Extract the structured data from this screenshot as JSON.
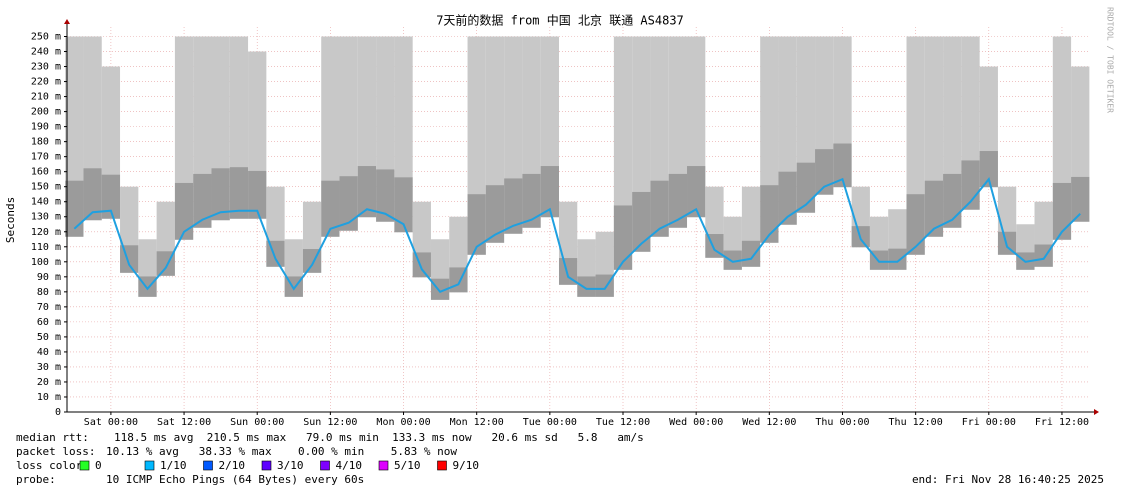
{
  "chart_data": {
    "type": "line",
    "title": "7天前的数据 from 中国 北京 联通 AS4837",
    "y_label": "Seconds",
    "watermark": "RRDTOOL / TOBI OETIKER",
    "grid": true,
    "xlim": [
      -7.2,
      160.6
    ],
    "xticks": [
      {
        "value": 0,
        "label": "Sat 00:00"
      },
      {
        "value": 12,
        "label": "Sat 12:00"
      },
      {
        "value": 24,
        "label": "Sun 00:00"
      },
      {
        "value": 36,
        "label": "Sun 12:00"
      },
      {
        "value": 48,
        "label": "Mon 00:00"
      },
      {
        "value": 60,
        "label": "Mon 12:00"
      },
      {
        "value": 72,
        "label": "Tue 00:00"
      },
      {
        "value": 84,
        "label": "Tue 12:00"
      },
      {
        "value": 96,
        "label": "Wed 00:00"
      },
      {
        "value": 108,
        "label": "Wed 12:00"
      },
      {
        "value": 120,
        "label": "Thu 00:00"
      },
      {
        "value": 132,
        "label": "Thu 12:00"
      },
      {
        "value": 144,
        "label": "Fri 00:00"
      },
      {
        "value": 156,
        "label": "Fri 12:00"
      }
    ],
    "ylim": [
      0,
      253
    ],
    "yticks": [
      0,
      {
        "value": 10,
        "label": "10 m"
      },
      {
        "value": 20,
        "label": "20 m"
      },
      {
        "value": 30,
        "label": "30 m"
      },
      {
        "value": 40,
        "label": "40 m"
      },
      {
        "value": 50,
        "label": "50 m"
      },
      {
        "value": 60,
        "label": "60 m"
      },
      {
        "value": 70,
        "label": "70 m"
      },
      {
        "value": 80,
        "label": "80 m"
      },
      {
        "value": 90,
        "label": "90 m"
      },
      {
        "value": 100,
        "label": "100 m"
      },
      {
        "value": 110,
        "label": "110 m"
      },
      {
        "value": 120,
        "label": "120 m"
      },
      {
        "value": 130,
        "label": "130 m"
      },
      {
        "value": 140,
        "label": "140 m"
      },
      {
        "value": 150,
        "label": "150 m"
      },
      {
        "value": 160,
        "label": "160 m"
      },
      {
        "value": 170,
        "label": "170 m"
      },
      {
        "value": 180,
        "label": "180 m"
      },
      {
        "value": 190,
        "label": "190 m"
      },
      {
        "value": 200,
        "label": "200 m"
      },
      {
        "value": 210,
        "label": "210 m"
      },
      {
        "value": 220,
        "label": "220 m"
      },
      {
        "value": 230,
        "label": "230 m"
      },
      {
        "value": 240,
        "label": "240 m"
      },
      {
        "value": 250,
        "label": "250 m"
      }
    ],
    "x": [
      -6,
      -3,
      0,
      3,
      6,
      9,
      12,
      15,
      18,
      21,
      24,
      27,
      30,
      33,
      36,
      39,
      42,
      45,
      48,
      51,
      54,
      57,
      60,
      63,
      66,
      69,
      72,
      75,
      78,
      81,
      84,
      87,
      90,
      93,
      96,
      99,
      102,
      105,
      108,
      111,
      114,
      117,
      120,
      123,
      126,
      129,
      132,
      135,
      138,
      141,
      144,
      147,
      150,
      153,
      156,
      159
    ],
    "series": [
      {
        "color": "#1fa0e0",
        "smoke_color": "#c8c8c8",
        "values": [
          122,
          133,
          134,
          98,
          82,
          96,
          120,
          128,
          133,
          134,
          134,
          102,
          82,
          98,
          122,
          126,
          135,
          132,
          125,
          95,
          80,
          85,
          110,
          118,
          124,
          128,
          135,
          90,
          82,
          82,
          100,
          112,
          122,
          128,
          135,
          108,
          100,
          102,
          118,
          130,
          138,
          150,
          155,
          115,
          100,
          100,
          110,
          122,
          128,
          140,
          155,
          110,
          100,
          102,
          120,
          132
        ],
        "smoke": [
          250,
          250,
          230,
          150,
          115,
          140,
          250,
          250,
          250,
          250,
          240,
          150,
          115,
          140,
          250,
          250,
          250,
          250,
          250,
          140,
          115,
          130,
          250,
          250,
          250,
          250,
          250,
          140,
          115,
          120,
          250,
          250,
          250,
          250,
          250,
          150,
          130,
          150,
          250,
          250,
          250,
          250,
          250,
          150,
          130,
          135,
          250,
          250,
          250,
          250,
          230,
          150,
          125,
          140,
          250,
          230
        ]
      }
    ],
    "stats": {
      "median_rtt": {
        "label": "median rtt:",
        "text": "118.5 ms avg  210.5 ms max   79.0 ms min  133.3 ms now   20.6 ms sd   5.8   am/s"
      },
      "packet_loss": {
        "label": "packet loss:",
        "text": "10.13 % avg   38.33 % max    0.00 % min    5.83 % now"
      },
      "loss_color": {
        "label": "loss color:",
        "items": [
          {
            "label": "0",
            "color": "#26ff26"
          },
          {
            "label": "1/10",
            "color": "#00b8ff"
          },
          {
            "label": "2/10",
            "color": "#0059ff"
          },
          {
            "label": "3/10",
            "color": "#5e00ff"
          },
          {
            "label": "4/10",
            "color": "#7e00ff"
          },
          {
            "label": "5/10",
            "color": "#dd00ff"
          },
          {
            "label": "9/10",
            "color": "#ff0000"
          }
        ]
      },
      "probe": {
        "label": "probe:",
        "text": "10 ICMP Echo Pings (64 Bytes) every 60s"
      },
      "end": "end: Fri Nov 28 16:40:25 2025"
    }
  }
}
